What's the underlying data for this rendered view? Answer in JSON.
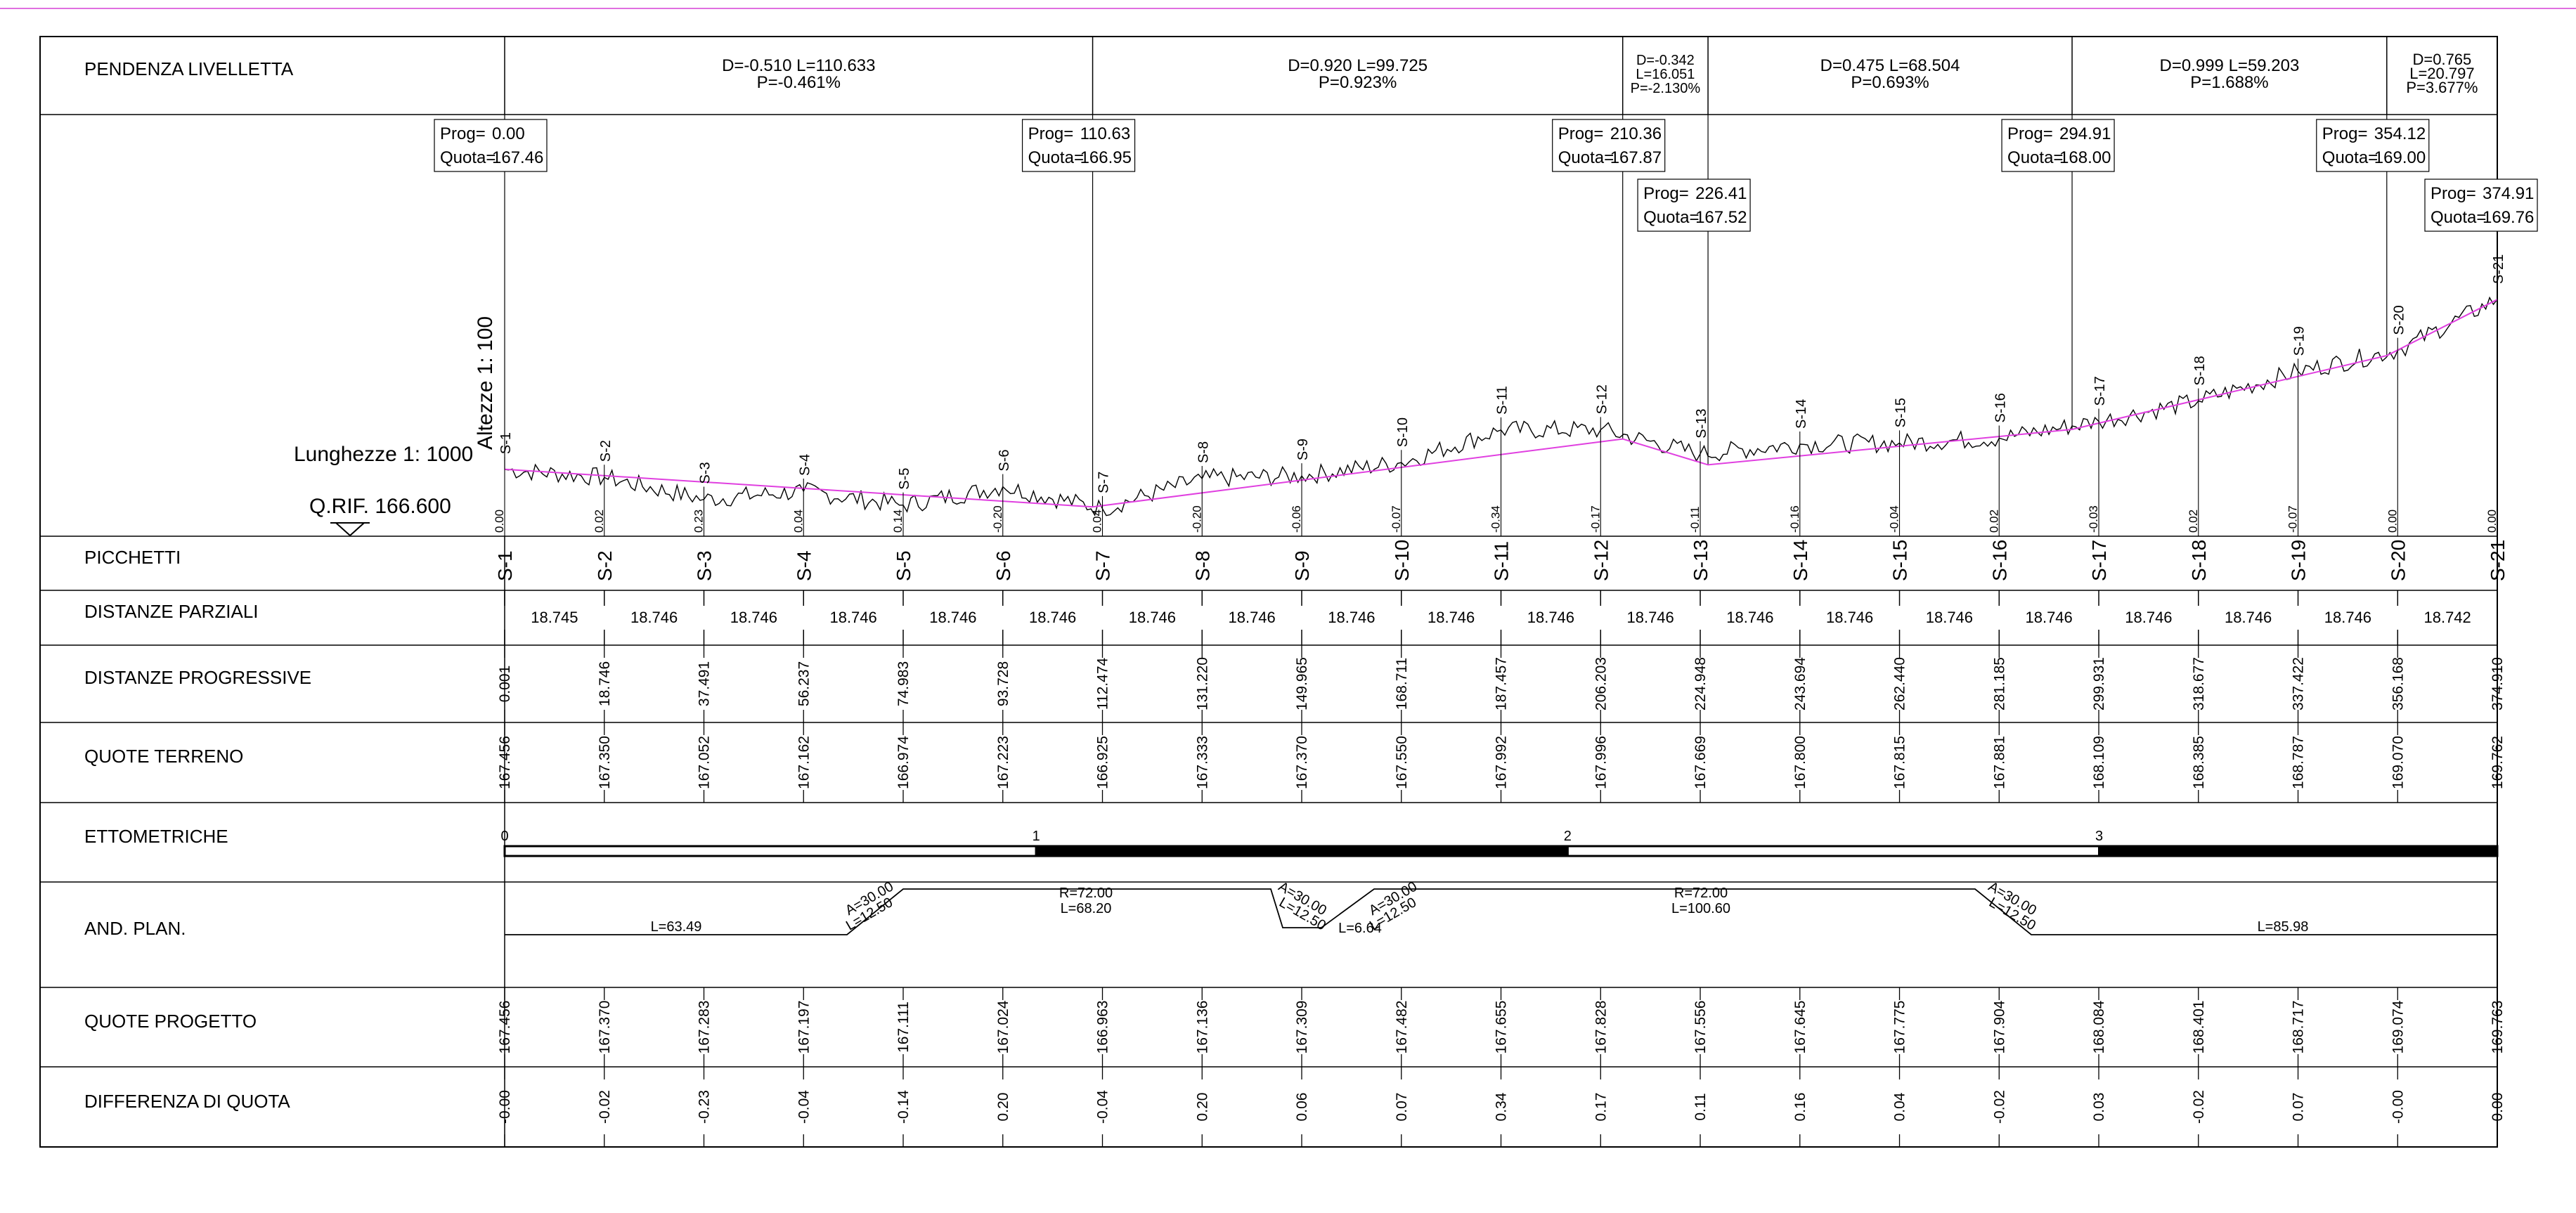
{
  "rows": [
    {
      "key": "pendenza",
      "label": "PENDENZA LIVELLETTA"
    },
    {
      "key": "picchetti",
      "label": "PICCHETTI"
    },
    {
      "key": "dist_parz",
      "label": "DISTANZE PARZIALI"
    },
    {
      "key": "dist_prog",
      "label": "DISTANZE PROGRESSIVE"
    },
    {
      "key": "quote_terreno",
      "label": "QUOTE TERRENO"
    },
    {
      "key": "ettometriche",
      "label": "ETTOMETRICHE"
    },
    {
      "key": "and_plan",
      "label": "AND. PLAN."
    },
    {
      "key": "quote_progetto",
      "label": "QUOTE PROGETTO"
    },
    {
      "key": "differenza",
      "label": "DIFFERENZA DI QUOTA"
    }
  ],
  "scales": {
    "heights": "Altezze 1: 100",
    "lengths": "Lunghezze 1: 1000",
    "reference": "Q.RIF. 166.600"
  },
  "slopes": [
    {
      "lines": [
        "D=-0.510 L=110.633",
        "P=-0.461%"
      ]
    },
    {
      "lines": [
        "D=0.920 L=99.725",
        "P=0.923%"
      ]
    },
    {
      "lines": [
        "D=-0.342",
        "L=16.051",
        "P=-2.130%"
      ]
    },
    {
      "lines": [
        "D=0.475 L=68.504",
        "P=0.693%"
      ]
    },
    {
      "lines": [
        "D=0.999 L=59.203",
        "P=1.688%"
      ]
    },
    {
      "lines": [
        "D=0.765",
        "L=20.797",
        "P=3.677%"
      ]
    }
  ],
  "vertices": [
    {
      "prog_label": "Prog=",
      "prog": "0.00",
      "quota_label": "Quota=",
      "quota": "167.46"
    },
    {
      "prog_label": "Prog=",
      "prog": "110.63",
      "quota_label": "Quota=",
      "quota": "166.95"
    },
    {
      "prog_label": "Prog=",
      "prog": "210.36",
      "quota_label": "Quota=",
      "quota": "167.87"
    },
    {
      "prog_label": "Prog=",
      "prog": "226.41",
      "quota_label": "Quota=",
      "quota": "167.52"
    },
    {
      "prog_label": "Prog=",
      "prog": "294.91",
      "quota_label": "Quota=",
      "quota": "168.00"
    },
    {
      "prog_label": "Prog=",
      "prog": "354.12",
      "quota_label": "Quota=",
      "quota": "169.00"
    },
    {
      "prog_label": "Prog=",
      "prog": "374.91",
      "quota_label": "Quota=",
      "quota": "169.76"
    }
  ],
  "sections": [
    {
      "name": "S-1",
      "parziale": "18.745",
      "progressiva": "0.001",
      "terreno": "167.456",
      "progetto": "167.456",
      "differenza": "-0.00",
      "profile_diff": "0.00"
    },
    {
      "name": "S-2",
      "parziale": "18.746",
      "progressiva": "18.746",
      "terreno": "167.350",
      "progetto": "167.370",
      "differenza": "-0.02",
      "profile_diff": "0.02"
    },
    {
      "name": "S-3",
      "parziale": "18.746",
      "progressiva": "37.491",
      "terreno": "167.052",
      "progetto": "167.283",
      "differenza": "-0.23",
      "profile_diff": "0.23"
    },
    {
      "name": "S-4",
      "parziale": "18.746",
      "progressiva": "56.237",
      "terreno": "167.162",
      "progetto": "167.197",
      "differenza": "-0.04",
      "profile_diff": "0.04"
    },
    {
      "name": "S-5",
      "parziale": "18.746",
      "progressiva": "74.983",
      "terreno": "166.974",
      "progetto": "167.111",
      "differenza": "-0.14",
      "profile_diff": "0.14"
    },
    {
      "name": "S-6",
      "parziale": "18.746",
      "progressiva": "93.728",
      "terreno": "167.223",
      "progetto": "167.024",
      "differenza": "0.20",
      "profile_diff": "-0.20"
    },
    {
      "name": "S-7",
      "parziale": "18.746",
      "progressiva": "112.474",
      "terreno": "166.925",
      "progetto": "166.963",
      "differenza": "-0.04",
      "profile_diff": "0.04"
    },
    {
      "name": "S-8",
      "parziale": "18.746",
      "progressiva": "131.220",
      "terreno": "167.333",
      "progetto": "167.136",
      "differenza": "0.20",
      "profile_diff": "-0.20"
    },
    {
      "name": "S-9",
      "parziale": "18.746",
      "progressiva": "149.965",
      "terreno": "167.370",
      "progetto": "167.309",
      "differenza": "0.06",
      "profile_diff": "-0.06"
    },
    {
      "name": "S-10",
      "parziale": "18.746",
      "progressiva": "168.711",
      "terreno": "167.550",
      "progetto": "167.482",
      "differenza": "0.07",
      "profile_diff": "-0.07"
    },
    {
      "name": "S-11",
      "parziale": "18.746",
      "progressiva": "187.457",
      "terreno": "167.992",
      "progetto": "167.655",
      "differenza": "0.34",
      "profile_diff": "-0.34"
    },
    {
      "name": "S-12",
      "parziale": "18.746",
      "progressiva": "206.203",
      "terreno": "167.996",
      "progetto": "167.828",
      "differenza": "0.17",
      "profile_diff": "-0.17"
    },
    {
      "name": "S-13",
      "parziale": "18.746",
      "progressiva": "224.948",
      "terreno": "167.669",
      "progetto": "167.556",
      "differenza": "0.11",
      "profile_diff": "-0.11"
    },
    {
      "name": "S-14",
      "parziale": "18.746",
      "progressiva": "243.694",
      "terreno": "167.800",
      "progetto": "167.645",
      "differenza": "0.16",
      "profile_diff": "-0.16"
    },
    {
      "name": "S-15",
      "parziale": "18.746",
      "progressiva": "262.440",
      "terreno": "167.815",
      "progetto": "167.775",
      "differenza": "0.04",
      "profile_diff": "-0.04"
    },
    {
      "name": "S-16",
      "parziale": "18.746",
      "progressiva": "281.185",
      "terreno": "167.881",
      "progetto": "167.904",
      "differenza": "-0.02",
      "profile_diff": "0.02"
    },
    {
      "name": "S-17",
      "parziale": "18.746",
      "progressiva": "299.931",
      "terreno": "168.109",
      "progetto": "168.084",
      "differenza": "0.03",
      "profile_diff": "-0.03"
    },
    {
      "name": "S-18",
      "parziale": "18.746",
      "progressiva": "318.677",
      "terreno": "168.385",
      "progetto": "168.401",
      "differenza": "-0.02",
      "profile_diff": "0.02"
    },
    {
      "name": "S-19",
      "parziale": "18.746",
      "progressiva": "337.422",
      "terreno": "168.787",
      "progetto": "168.717",
      "differenza": "0.07",
      "profile_diff": "-0.07"
    },
    {
      "name": "S-20",
      "parziale": "18.742",
      "progressiva": "356.168",
      "terreno": "169.070",
      "progetto": "169.074",
      "differenza": "-0.00",
      "profile_diff": "0.00"
    },
    {
      "name": "S-21",
      "parziale": "",
      "progressiva": "374.910",
      "terreno": "169.762",
      "progetto": "169.763",
      "differenza": "0.00",
      "profile_diff": "0.00"
    }
  ],
  "hectometric": {
    "labels": [
      "0",
      "1",
      "2",
      "3"
    ]
  },
  "plan": [
    {
      "lines": [
        "L=63.49"
      ]
    },
    {
      "lines": [
        "A=30.00",
        "L=12.50"
      ]
    },
    {
      "lines": [
        "R=72.00",
        "L=68.20"
      ]
    },
    {
      "lines": [
        "A=30.00",
        "L=12.50"
      ]
    },
    {
      "lines": [
        "L=6.64"
      ]
    },
    {
      "lines": [
        "A=30.00",
        "L=12.50"
      ]
    },
    {
      "lines": [
        "R=72.00",
        "L=100.60"
      ]
    },
    {
      "lines": [
        "A=30.00",
        "L=12.50"
      ]
    },
    {
      "lines": [
        "L=85.98"
      ]
    }
  ],
  "colors": {
    "design_line": "#e040e0",
    "ink": "#000000",
    "top_rule": "#e070e0"
  }
}
